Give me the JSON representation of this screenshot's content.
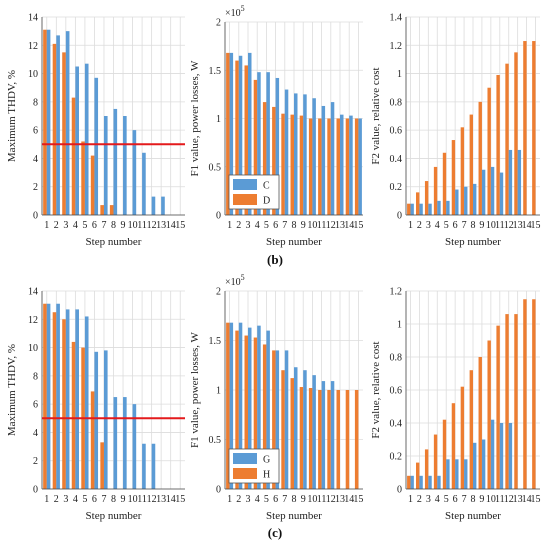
{
  "captions": {
    "b": "(b)",
    "c": "(c)"
  },
  "colors": {
    "blue": "#5B9BD5",
    "orange": "#ED7D31",
    "red": "#E41A1C"
  },
  "chart_data": [
    {
      "type": "bar",
      "xlabel": "Step number",
      "ylabel": "Maximum THDV, %",
      "ylim": [
        0,
        14
      ],
      "yticks": [
        "0",
        "2",
        "4",
        "6",
        "8",
        "10",
        "12",
        "14"
      ],
      "categories": [
        "1",
        "2",
        "3",
        "4",
        "5",
        "6",
        "7",
        "8",
        "9",
        "10",
        "11",
        "12",
        "13",
        "14",
        "15"
      ],
      "series": [
        {
          "color": "orange",
          "values": [
            13.1,
            12.1,
            11.5,
            8.3,
            5.2,
            4.2,
            0.7,
            0.7,
            0,
            0,
            0,
            0,
            0,
            0,
            0
          ]
        },
        {
          "color": "blue",
          "values": [
            13.1,
            12.7,
            13.0,
            10.5,
            10.7,
            9.7,
            7.0,
            7.5,
            7.0,
            6.0,
            4.4,
            1.3,
            1.3,
            0,
            0
          ]
        }
      ],
      "hline": 5.0,
      "group": "b"
    },
    {
      "type": "bar",
      "xlabel": "Step number",
      "ylabel": "F1 value, power losses, W",
      "ylim": [
        0,
        2
      ],
      "yticks": [
        "0",
        "0.5",
        "1",
        "1.5",
        "2"
      ],
      "scale_label": "×10",
      "scale_exp": "5",
      "categories": [
        "1",
        "2",
        "3",
        "4",
        "5",
        "6",
        "7",
        "8",
        "9",
        "10",
        "11",
        "12",
        "13",
        "14",
        "15"
      ],
      "series": [
        {
          "name": "D",
          "color": "orange",
          "values": [
            1.68,
            1.6,
            1.55,
            1.4,
            1.17,
            1.12,
            1.05,
            1.04,
            1.03,
            1.0,
            1.0,
            1.0,
            1.0,
            1.0,
            1.0
          ]
        },
        {
          "name": "C",
          "color": "blue",
          "values": [
            1.68,
            1.65,
            1.68,
            1.48,
            1.48,
            1.42,
            1.3,
            1.26,
            1.25,
            1.21,
            1.13,
            1.17,
            1.04,
            1.03,
            1.0
          ]
        }
      ],
      "legend": "bottom-left",
      "group": "b"
    },
    {
      "type": "bar",
      "xlabel": "Step number",
      "ylabel": "F2 value, relative cost",
      "ylim": [
        0,
        1.4
      ],
      "yticks": [
        "0",
        "0.2",
        "0.4",
        "0.6",
        "0.8",
        "1",
        "1.2",
        "1.4"
      ],
      "categories": [
        "1",
        "2",
        "3",
        "4",
        "5",
        "6",
        "7",
        "8",
        "9",
        "10",
        "11",
        "12",
        "13",
        "14",
        "15"
      ],
      "series": [
        {
          "color": "orange",
          "values": [
            0.08,
            0.16,
            0.24,
            0.34,
            0.44,
            0.53,
            0.62,
            0.71,
            0.8,
            0.9,
            0.99,
            1.07,
            1.15,
            1.23,
            1.23
          ]
        },
        {
          "color": "blue",
          "values": [
            0.08,
            0.08,
            0.08,
            0.1,
            0.1,
            0.18,
            0.2,
            0.22,
            0.32,
            0.34,
            0.3,
            0.46,
            0.46,
            0,
            0
          ]
        }
      ],
      "group": "b"
    },
    {
      "type": "bar",
      "xlabel": "Step number",
      "ylabel": "Maximum THDV, %",
      "ylim": [
        0,
        14
      ],
      "yticks": [
        "0",
        "2",
        "4",
        "6",
        "8",
        "10",
        "12",
        "14"
      ],
      "categories": [
        "1",
        "2",
        "3",
        "4",
        "5",
        "6",
        "7",
        "8",
        "9",
        "10",
        "11",
        "12",
        "13",
        "14",
        "15"
      ],
      "series": [
        {
          "color": "orange",
          "values": [
            13.1,
            12.5,
            12.0,
            10.4,
            10.0,
            6.9,
            3.3,
            0,
            0,
            0,
            0,
            0,
            0,
            0,
            0
          ]
        },
        {
          "color": "blue",
          "values": [
            13.1,
            13.1,
            12.7,
            12.7,
            12.2,
            9.7,
            9.8,
            6.5,
            6.5,
            6.0,
            3.2,
            3.2,
            0,
            0,
            0
          ]
        }
      ],
      "hline": 5.0,
      "group": "c"
    },
    {
      "type": "bar",
      "xlabel": "Step number",
      "ylabel": "F1 value, power losses, W",
      "ylim": [
        0,
        2
      ],
      "yticks": [
        "0",
        "0.5",
        "1",
        "1.5",
        "2"
      ],
      "scale_label": "×10",
      "scale_exp": "5",
      "categories": [
        "1",
        "2",
        "3",
        "4",
        "5",
        "6",
        "7",
        "8",
        "9",
        "10",
        "11",
        "12",
        "13",
        "14",
        "15"
      ],
      "series": [
        {
          "name": "H",
          "color": "orange",
          "values": [
            1.68,
            1.6,
            1.55,
            1.53,
            1.46,
            1.4,
            1.2,
            1.12,
            1.03,
            1.02,
            1.0,
            1.0,
            1.0,
            1.0,
            1.0
          ]
        },
        {
          "name": "G",
          "color": "blue",
          "values": [
            1.68,
            1.68,
            1.63,
            1.65,
            1.6,
            1.4,
            1.4,
            1.23,
            1.2,
            1.15,
            1.09,
            1.09,
            0,
            0,
            0
          ]
        }
      ],
      "legend": "bottom-left",
      "group": "c"
    },
    {
      "type": "bar",
      "xlabel": "Step number",
      "ylabel": "F2 value, relative cost",
      "ylim": [
        0,
        1.2
      ],
      "yticks": [
        "0",
        "0.2",
        "0.4",
        "0.6",
        "0.8",
        "1",
        "1.2"
      ],
      "categories": [
        "1",
        "2",
        "3",
        "4",
        "5",
        "6",
        "7",
        "8",
        "9",
        "10",
        "11",
        "12",
        "13",
        "14",
        "15"
      ],
      "series": [
        {
          "color": "orange",
          "values": [
            0.08,
            0.16,
            0.24,
            0.33,
            0.42,
            0.52,
            0.62,
            0.72,
            0.8,
            0.9,
            0.99,
            1.06,
            1.06,
            1.15,
            1.15
          ]
        },
        {
          "color": "blue",
          "values": [
            0.08,
            0.08,
            0.08,
            0.08,
            0.18,
            0.18,
            0.18,
            0.28,
            0.3,
            0.42,
            0.4,
            0.4,
            0,
            0,
            0
          ]
        }
      ],
      "group": "c"
    }
  ]
}
